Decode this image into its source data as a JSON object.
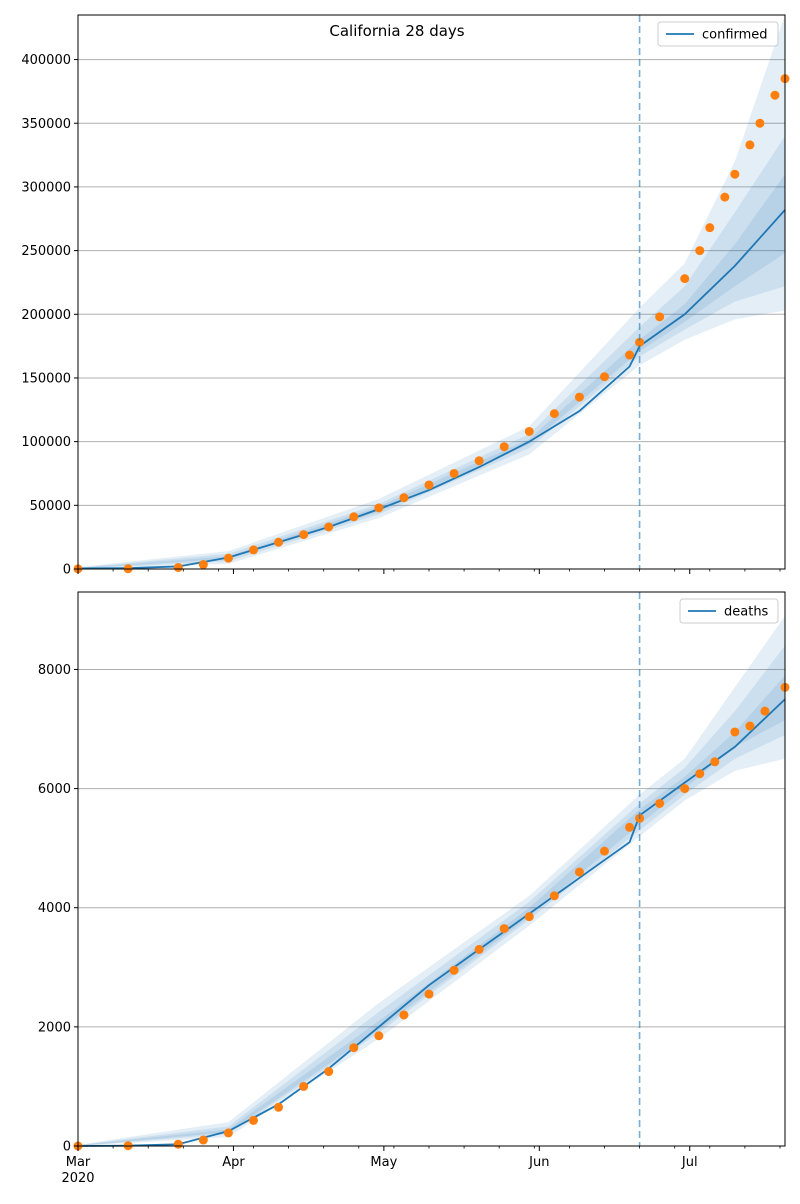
{
  "title": "California 28 days",
  "colors": {
    "model": "#1f77b4",
    "observed": "#ff7f0e",
    "grid": "#b0b0b0",
    "forecast_start": "#1f77b4"
  },
  "chart_data": [
    {
      "type": "line",
      "panel": "confirmed",
      "title": "California 28 days",
      "legend": [
        "confirmed"
      ],
      "legend_position": "top-right",
      "grid": "horizontal",
      "xlim": [
        "2020-03-01",
        "2020-07-20"
      ],
      "ylim": [
        0,
        435000
      ],
      "yticks": [
        0,
        50000,
        100000,
        150000,
        200000,
        250000,
        300000,
        350000,
        400000
      ],
      "ytick_labels": [
        "0",
        "50000",
        "100000",
        "150000",
        "200000",
        "250000",
        "300000",
        "350000",
        "400000"
      ],
      "forecast_start": "2020-06-21",
      "model_median": {
        "dates": [
          "2020-03-01",
          "2020-03-11",
          "2020-03-21",
          "2020-03-31",
          "2020-04-10",
          "2020-04-20",
          "2020-04-30",
          "2020-05-10",
          "2020-05-20",
          "2020-05-30",
          "2020-06-09",
          "2020-06-19",
          "2020-06-21",
          "2020-06-30",
          "2020-07-10",
          "2020-07-20"
        ],
        "values": [
          500,
          700,
          2000,
          9000,
          21000,
          33000,
          47000,
          62000,
          80000,
          100000,
          124000,
          159000,
          175000,
          200000,
          238000,
          282000
        ]
      },
      "bands": [
        {
          "label": "outer",
          "dates": [
            "2020-03-01",
            "2020-03-31",
            "2020-04-30",
            "2020-05-30",
            "2020-06-21",
            "2020-06-30",
            "2020-07-10",
            "2020-07-20"
          ],
          "lower": [
            0,
            4000,
            40000,
            90000,
            160000,
            180000,
            196000,
            203000
          ],
          "upper": [
            1500,
            14000,
            55000,
            112000,
            205000,
            240000,
            320000,
            435000
          ]
        },
        {
          "label": "middle",
          "dates": [
            "2020-03-01",
            "2020-03-31",
            "2020-04-30",
            "2020-05-30",
            "2020-06-21",
            "2020-06-30",
            "2020-07-10",
            "2020-07-20"
          ],
          "lower": [
            200,
            6000,
            43000,
            95000,
            167000,
            188000,
            210000,
            222000
          ],
          "upper": [
            1000,
            12000,
            51000,
            106000,
            190000,
            222000,
            280000,
            340000
          ]
        },
        {
          "label": "inner",
          "dates": [
            "2020-03-01",
            "2020-03-31",
            "2020-04-30",
            "2020-05-30",
            "2020-06-21",
            "2020-06-30",
            "2020-07-10",
            "2020-07-20"
          ],
          "lower": [
            400,
            8000,
            45000,
            98000,
            171000,
            194000,
            222000,
            248000
          ],
          "upper": [
            700,
            10000,
            49000,
            102000,
            180000,
            208000,
            255000,
            310000
          ]
        }
      ],
      "observed": {
        "dates": [
          "2020-03-01",
          "2020-03-11",
          "2020-03-21",
          "2020-03-26",
          "2020-03-31",
          "2020-04-05",
          "2020-04-10",
          "2020-04-15",
          "2020-04-20",
          "2020-04-25",
          "2020-04-30",
          "2020-05-05",
          "2020-05-10",
          "2020-05-15",
          "2020-05-20",
          "2020-05-25",
          "2020-05-30",
          "2020-06-04",
          "2020-06-09",
          "2020-06-14",
          "2020-06-19",
          "2020-06-21",
          "2020-06-25",
          "2020-06-30",
          "2020-07-03",
          "2020-07-05",
          "2020-07-08",
          "2020-07-10",
          "2020-07-13",
          "2020-07-15",
          "2020-07-18",
          "2020-07-20"
        ],
        "values": [
          100,
          200,
          1200,
          3500,
          8500,
          15000,
          21000,
          27000,
          33000,
          41000,
          48000,
          56000,
          66000,
          75000,
          85000,
          96000,
          108000,
          122000,
          135000,
          151000,
          168000,
          178000,
          198000,
          228000,
          250000,
          268000,
          292000,
          310000,
          333000,
          350000,
          372000,
          385000
        ]
      }
    },
    {
      "type": "line",
      "panel": "deaths",
      "legend": [
        "deaths"
      ],
      "legend_position": "top-right",
      "grid": "horizontal",
      "xlim": [
        "2020-03-01",
        "2020-07-20"
      ],
      "ylim": [
        0,
        9300
      ],
      "yticks": [
        0,
        2000,
        4000,
        6000,
        8000
      ],
      "ytick_labels": [
        "0",
        "2000",
        "4000",
        "6000",
        "8000"
      ],
      "xtick_labels": [
        "Mar\n2020",
        "Apr",
        "May",
        "Jun",
        "Jul"
      ],
      "forecast_start": "2020-06-21",
      "model_median": {
        "dates": [
          "2020-03-01",
          "2020-03-11",
          "2020-03-21",
          "2020-03-31",
          "2020-04-10",
          "2020-04-20",
          "2020-04-30",
          "2020-05-10",
          "2020-05-20",
          "2020-05-30",
          "2020-06-09",
          "2020-06-19",
          "2020-06-21",
          "2020-06-30",
          "2020-07-10",
          "2020-07-20"
        ],
        "values": [
          0,
          5,
          30,
          250,
          700,
          1300,
          2000,
          2700,
          3300,
          3900,
          4500,
          5100,
          5550,
          6100,
          6700,
          7500
        ]
      },
      "bands": [
        {
          "label": "outer",
          "dates": [
            "2020-03-01",
            "2020-03-31",
            "2020-04-30",
            "2020-05-30",
            "2020-06-21",
            "2020-06-30",
            "2020-07-10",
            "2020-07-20"
          ],
          "lower": [
            0,
            150,
            1800,
            3700,
            5200,
            5800,
            6300,
            6500
          ],
          "upper": [
            20,
            400,
            2400,
            4200,
            5900,
            6500,
            7700,
            8900
          ]
        },
        {
          "label": "middle",
          "dates": [
            "2020-03-01",
            "2020-03-31",
            "2020-04-30",
            "2020-05-30",
            "2020-06-21",
            "2020-06-30",
            "2020-07-10",
            "2020-07-20"
          ],
          "lower": [
            0,
            200,
            1900,
            3800,
            5300,
            5900,
            6500,
            6900
          ],
          "upper": [
            15,
            330,
            2250,
            4100,
            5750,
            6350,
            7300,
            8400
          ]
        },
        {
          "label": "inner",
          "dates": [
            "2020-03-01",
            "2020-03-31",
            "2020-04-30",
            "2020-05-30",
            "2020-06-21",
            "2020-06-30",
            "2020-07-10",
            "2020-07-20"
          ],
          "lower": [
            0,
            230,
            1950,
            3850,
            5400,
            6000,
            6700,
            7150
          ],
          "upper": [
            10,
            280,
            2100,
            4000,
            5650,
            6200,
            6950,
            7900
          ]
        }
      ],
      "observed": {
        "dates": [
          "2020-03-01",
          "2020-03-11",
          "2020-03-21",
          "2020-03-26",
          "2020-03-31",
          "2020-04-05",
          "2020-04-10",
          "2020-04-15",
          "2020-04-20",
          "2020-04-25",
          "2020-04-30",
          "2020-05-05",
          "2020-05-10",
          "2020-05-15",
          "2020-05-20",
          "2020-05-25",
          "2020-05-30",
          "2020-06-04",
          "2020-06-09",
          "2020-06-14",
          "2020-06-19",
          "2020-06-21",
          "2020-06-25",
          "2020-06-30",
          "2020-07-03",
          "2020-07-06",
          "2020-07-10",
          "2020-07-13",
          "2020-07-16",
          "2020-07-20"
        ],
        "values": [
          0,
          5,
          30,
          100,
          220,
          430,
          650,
          1000,
          1250,
          1650,
          1850,
          2200,
          2550,
          2950,
          3300,
          3650,
          3850,
          4200,
          4600,
          4950,
          5350,
          5500,
          5750,
          6000,
          6250,
          6450,
          6950,
          7050,
          7300,
          7700
        ]
      }
    }
  ]
}
